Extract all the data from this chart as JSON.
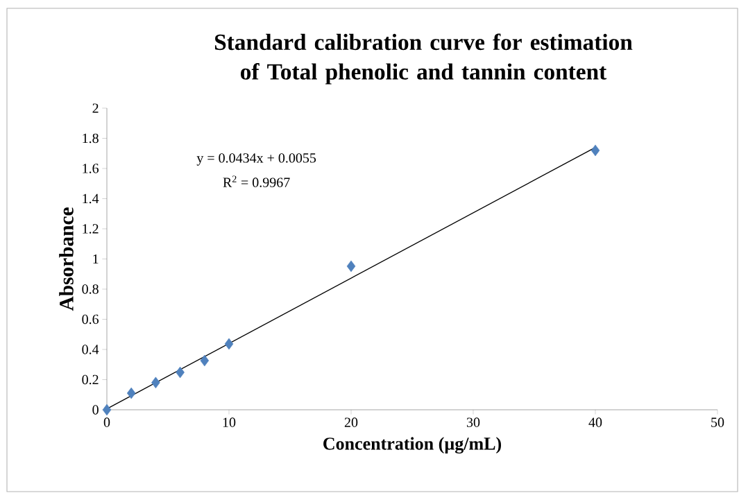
{
  "chart_data": {
    "type": "scatter",
    "title": "Standard calibration curve for estimation of Total phenolic and tannin content",
    "xlabel": "Concentration (µg/mL)",
    "ylabel": "Absorbance",
    "annotations": [
      "y = 0.0434x + 0.0055",
      "R$^{2}$ = 0.9967"
    ],
    "series": [
      {
        "type": "scatter",
        "color": "#4f81bd",
        "marker": "diamond",
        "x": [
          0,
          2,
          4,
          6,
          8,
          10,
          20,
          40
        ],
        "values": [
          0,
          0.11,
          0.18,
          0.248,
          0.326,
          0.437,
          0.952,
          1.72
        ]
      },
      {
        "type": "line",
        "color": "#000000",
        "marker": "none",
        "line_style": "solid",
        "x": [
          0,
          40
        ],
        "values": [
          0.006,
          1.74
        ]
      }
    ],
    "xlim": [
      0,
      50
    ],
    "ylim": [
      0,
      2
    ],
    "xticks": [
      0,
      10,
      20,
      30,
      40,
      50
    ],
    "yticks": [
      0,
      0.2,
      0.4,
      0.6,
      0.8,
      1,
      1.2,
      1.4,
      1.6,
      1.8,
      2
    ],
    "grid": false
  }
}
